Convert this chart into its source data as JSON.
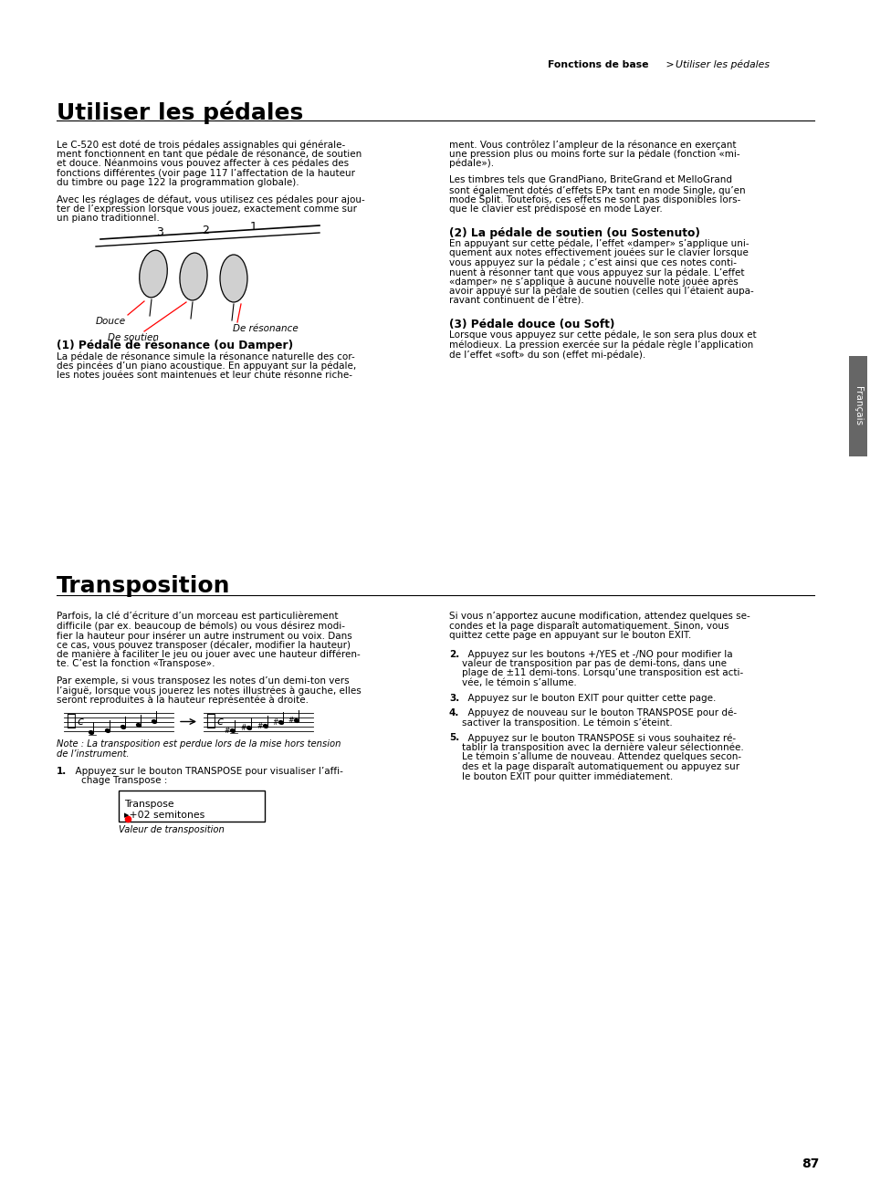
{
  "page_bg": "#ffffff",
  "title1": "Utiliser les pédales",
  "title2": "Transposition",
  "page_number": "87",
  "sidebar_text": "Français",
  "sidebar_bg": "#666666",
  "header_bold": "Fonctions de base",
  "header_sep": " > ",
  "header_italic": "Utiliser les pédales",
  "col1_body1_lines": [
    "Le C-520 est doté de trois pédales assignables qui générale-",
    "ment fonctionnent en tant que pédale de résonance, de soutien",
    "et douce. Néanmoins vous pouvez affecter à ces pédales des",
    "fonctions différentes (voir page 117 l’affectation de la hauteur",
    "du timbre ou page 122 la programmation globale)."
  ],
  "col1_body2_lines": [
    "Avec les réglages de défaut, vous utilisez ces pédales pour ajou-",
    "ter de l’expression lorsque vous jouez, exactement comme sur",
    "un piano traditionnel."
  ],
  "label_douce": "Douce",
  "label_de_soutien": "De soutien",
  "label_de_resonance": "De résonance",
  "sub1_title": "(1) Pédale de résonance (ou Damper)",
  "sub1_body_lines": [
    "La pédale de résonance simule la résonance naturelle des cor-",
    "des pincées d’un piano acoustique. En appuyant sur la pédale,",
    "les notes jouées sont maintenues et leur chute résonne riche-"
  ],
  "col2_body1_lines": [
    "ment. Vous contrôlez l’ampleur de la résonance en exerçant",
    "une pression plus ou moins forte sur la pédale (fonction «mi-",
    "pédale»)."
  ],
  "col2_body2_lines": [
    "Les timbres tels que GrandPiano, BriteGrand et MelloGrand",
    "sont également dotés d’effets EPx tant en mode Single, qu’en",
    "mode Split. Toutefois, ces effets ne sont pas disponibles lors-",
    "que le clavier est prédisposé en mode Layer."
  ],
  "sub2_title": "(2) La pédale de soutien (ou Sostenuto)",
  "sub2_body_lines": [
    "En appuyant sur cette pédale, l’effet «damper» s’applique uni-",
    "quement aux notes effectivement jouées sur le clavier lorsque",
    "vous appuyez sur la pédale ; c’est ainsi que ces notes conti-",
    "nuent à résonner tant que vous appuyez sur la pédale. L’effet",
    "«damper» ne s’applique à aucune nouvelle note jouée après",
    "avoir appuyé sur la pédale de soutien (celles qui l’étaient aupa-",
    "ravant continuent de l’être)."
  ],
  "sub3_title": "(3) Pédale douce (ou Soft)",
  "sub3_body_lines": [
    "Lorsque vous appuyez sur cette pédale, le son sera plus doux et",
    "mélodieux. La pression exercée sur la pédale règle l’application",
    "de l’effet «soft» du son (effet mi-pédale)."
  ],
  "trans_col1_body1_lines": [
    "Parfois, la clé d’écriture d’un morceau est particulièrement",
    "difficile (par ex. beaucoup de bémols) ou vous désirez modi-",
    "fier la hauteur pour insérer un autre instrument ou voix. Dans",
    "ce cas, vous pouvez transposer (décaler, modifier la hauteur)",
    "de manière à faciliter le jeu ou jouer avec une hauteur différen-",
    "te. C’est la fonction «Transpose»."
  ],
  "trans_col1_body2_lines": [
    "Par exemple, si vous transposez les notes d’un demi-ton vers",
    "l’aiguë, lorsque vous jouerez les notes illustrées à gauche, elles",
    "seront reproduites à la hauteur représentée à droite."
  ],
  "trans_note_lines": [
    "Note : La transposition est perdue lors de la mise hors tension",
    "de l’instrument."
  ],
  "trans_step1_a": "1.",
  "trans_step1_b": "  Appuyez sur le bouton TRANSPOSE pour visualiser l’affi-",
  "trans_step1_c": "    chage Transpose :",
  "lcd_line1": "Transpose",
  "lcd_line2": "▸+02 semitones",
  "lcd_caption": "Valeur de transposition",
  "trans_col2_body1_lines": [
    "Si vous n’apportez aucune modification, attendez quelques se-",
    "condes et la page disparaît automatiquement. Sinon, vous",
    "quittez cette page en appuyant sur le bouton EXIT."
  ],
  "trans_step2_lines": [
    [
      "2.",
      "  Appuyez sur les boutons +/YES et -/NO pour modifier la"
    ],
    [
      "",
      "  valeur de transposition par pas de demi-tons, dans une"
    ],
    [
      "",
      "  plage de ±11 demi-tons. Lorsqu’une transposition est acti-"
    ],
    [
      "",
      "  vée, le témoin s’allume."
    ]
  ],
  "trans_step3_lines": [
    [
      "3.",
      "  Appuyez sur le bouton EXIT pour quitter cette page."
    ]
  ],
  "trans_step4_lines": [
    [
      "4.",
      "  Appuyez de nouveau sur le bouton TRANSPOSE pour dé-"
    ],
    [
      "",
      "  sactiver la transposition. Le témoin s’éteint."
    ]
  ],
  "trans_step5_lines": [
    [
      "5.",
      "  Appuyez sur le bouton TRANSPOSE si vous souhaitez ré-"
    ],
    [
      "",
      "  tablir la transposition avec la dernière valeur sélectionnée."
    ],
    [
      "",
      "  Le témoin s’allume de nouveau. Attendez quelques secon-"
    ],
    [
      "",
      "  des et la page disparaît automatiquement ou appuyez sur"
    ],
    [
      "",
      "  le bouton EXIT pour quitter immédiatement."
    ]
  ]
}
